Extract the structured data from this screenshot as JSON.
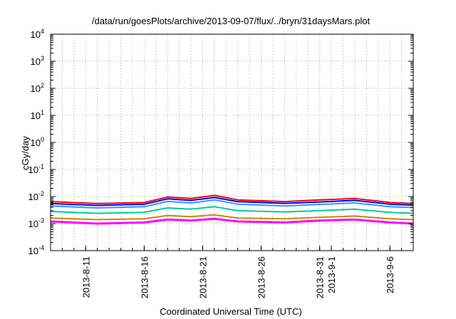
{
  "chart_data": {
    "type": "line",
    "title": "/data/run/goesPlots/archive/2013-09-07/flux/../bryn/31daysMars.plot",
    "xlabel": "Coordinated Universal Time (UTC)",
    "ylabel": "cGy/day",
    "yscale": "log",
    "ylim": [
      0.0001,
      10000
    ],
    "xlim": [
      "2013-08-08",
      "2013-09-08"
    ],
    "grid": true,
    "y_ticks": [
      {
        "base": "10",
        "exp": "-4"
      },
      {
        "base": "10",
        "exp": "-3"
      },
      {
        "base": "10",
        "exp": "-2"
      },
      {
        "base": "10",
        "exp": "-1"
      },
      {
        "base": "10",
        "exp": "0"
      },
      {
        "base": "10",
        "exp": "1"
      },
      {
        "base": "10",
        "exp": "2"
      },
      {
        "base": "10",
        "exp": "3"
      },
      {
        "base": "10",
        "exp": "4"
      }
    ],
    "x_ticks": [
      {
        "date": "2013-08-11",
        "label": "2013-8-11"
      },
      {
        "date": "2013-08-16",
        "label": "2013-8-16"
      },
      {
        "date": "2013-08-21",
        "label": "2013-8-21"
      },
      {
        "date": "2013-08-26",
        "label": "2013-8-26"
      },
      {
        "date": "2013-08-31",
        "label": "2013-8-31"
      },
      {
        "date": "2013-09-01",
        "label": "2013-9-1"
      },
      {
        "date": "2013-09-06",
        "label": "2013-9-6"
      }
    ],
    "series": [
      {
        "color": "#ff0000",
        "dates": [
          "2013-08-08",
          "2013-08-12",
          "2013-08-16",
          "2013-08-18",
          "2013-08-20",
          "2013-08-22",
          "2013-08-24",
          "2013-08-28",
          "2013-08-31",
          "2013-09-03",
          "2013-09-06",
          "2013-09-08"
        ],
        "values": [
          0.0065,
          0.0055,
          0.006,
          0.0095,
          0.0085,
          0.011,
          0.0075,
          0.0065,
          0.0075,
          0.0085,
          0.006,
          0.0055
        ]
      },
      {
        "color": "#0000ff",
        "dates": [
          "2013-08-08",
          "2013-08-12",
          "2013-08-16",
          "2013-08-18",
          "2013-08-20",
          "2013-08-22",
          "2013-08-24",
          "2013-08-28",
          "2013-08-31",
          "2013-09-03",
          "2013-09-06",
          "2013-09-08"
        ],
        "values": [
          0.0055,
          0.0047,
          0.0052,
          0.0082,
          0.0072,
          0.0092,
          0.0065,
          0.0056,
          0.0063,
          0.0072,
          0.0052,
          0.0048
        ]
      },
      {
        "color": "#3399ff",
        "dates": [
          "2013-08-08",
          "2013-08-12",
          "2013-08-16",
          "2013-08-18",
          "2013-08-20",
          "2013-08-22",
          "2013-08-24",
          "2013-08-28",
          "2013-08-31",
          "2013-09-03",
          "2013-09-06",
          "2013-09-08"
        ],
        "values": [
          0.0045,
          0.0038,
          0.0042,
          0.0066,
          0.0058,
          0.0075,
          0.0052,
          0.0045,
          0.0051,
          0.0058,
          0.0042,
          0.0039
        ]
      },
      {
        "color": "#00cc99",
        "dates": [
          "2013-08-08",
          "2013-08-12",
          "2013-08-16",
          "2013-08-18",
          "2013-08-20",
          "2013-08-22",
          "2013-08-24",
          "2013-08-28",
          "2013-08-31",
          "2013-09-03",
          "2013-09-06",
          "2013-09-08"
        ],
        "values": [
          0.0028,
          0.0024,
          0.0026,
          0.0038,
          0.0034,
          0.0042,
          0.003,
          0.0027,
          0.003,
          0.0034,
          0.0026,
          0.0024
        ]
      },
      {
        "color": "#cc8800",
        "dates": [
          "2013-08-08",
          "2013-08-12",
          "2013-08-16",
          "2013-08-18",
          "2013-08-20",
          "2013-08-22",
          "2013-08-24",
          "2013-08-28",
          "2013-08-31",
          "2013-09-03",
          "2013-09-06",
          "2013-09-08"
        ],
        "values": [
          0.0016,
          0.0014,
          0.0015,
          0.002,
          0.0018,
          0.0021,
          0.0016,
          0.0015,
          0.0017,
          0.0019,
          0.0015,
          0.0014
        ]
      },
      {
        "color": "#ff00ff",
        "dates": [
          "2013-08-08",
          "2013-08-12",
          "2013-08-16",
          "2013-08-18",
          "2013-08-20",
          "2013-08-22",
          "2013-08-24",
          "2013-08-28",
          "2013-08-31",
          "2013-09-03",
          "2013-09-06",
          "2013-09-08"
        ],
        "values": [
          0.0012,
          0.001,
          0.0011,
          0.0014,
          0.0013,
          0.0015,
          0.0012,
          0.0011,
          0.0013,
          0.0014,
          0.0011,
          0.001
        ]
      }
    ]
  }
}
